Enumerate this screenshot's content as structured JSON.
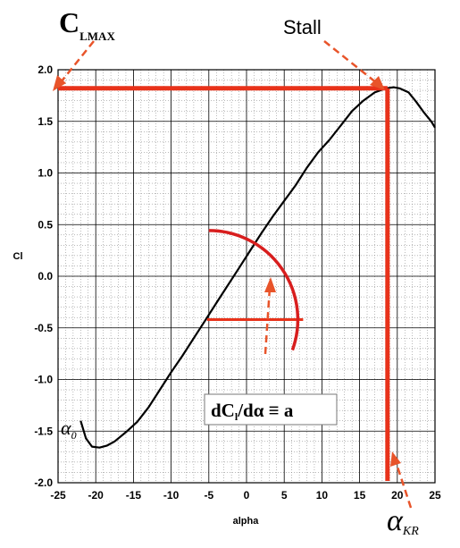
{
  "chart_data": {
    "type": "line",
    "xlabel": "alpha",
    "ylabel": "Cl",
    "xlim": [
      -25,
      25
    ],
    "ylim": [
      -2.0,
      2.0
    ],
    "x_ticks": [
      "-25",
      "-20",
      "-15",
      "-10",
      "-5",
      "0",
      "5",
      "10",
      "15",
      "20",
      "25"
    ],
    "y_ticks": [
      "2.0",
      "1.5",
      "1.0",
      "0.5",
      "0.0",
      "-0.5",
      "-1.0",
      "-1.5",
      "-2.0"
    ],
    "grid": true,
    "series": [
      {
        "x": [
          -22,
          -21.3,
          -20.5,
          -19.5,
          -18.5,
          -17.5,
          -16,
          -14.5,
          -13,
          -11.5,
          -10,
          -8.5,
          -7,
          -5.5,
          -4,
          -2.5,
          -1,
          0.5,
          2,
          3.5,
          5,
          6.5,
          8,
          9.5,
          11,
          12.5,
          14,
          15.5,
          17,
          18.5,
          19.5,
          20.3,
          21.5,
          22.5,
          23.5,
          24.5,
          25
        ],
        "y": [
          -1.4,
          -1.57,
          -1.65,
          -1.66,
          -1.64,
          -1.6,
          -1.51,
          -1.41,
          -1.27,
          -1.1,
          -0.93,
          -0.77,
          -0.6,
          -0.43,
          -0.26,
          -0.09,
          0.08,
          0.25,
          0.42,
          0.58,
          0.73,
          0.88,
          1.05,
          1.2,
          1.32,
          1.46,
          1.6,
          1.7,
          1.78,
          1.82,
          1.83,
          1.82,
          1.78,
          1.69,
          1.59,
          1.5,
          1.44
        ]
      }
    ],
    "annotations": {
      "clmax_label": "C",
      "clmax_sub": "LMAX",
      "stall_label": "Stall",
      "alpha0_label": "α",
      "alpha0_sub": "0",
      "alphakr_label": "α",
      "alphakr_sub": "KR",
      "slope_label": "dC",
      "slope_sub": "l",
      "slope_rest": "/dα ≡ a"
    },
    "markers": {
      "clmax_value": 1.82,
      "stall_alpha": 18.7,
      "slope_arc_center": [
        -5,
        -0.42
      ],
      "slope_arc_radius_alpha": 11.8
    },
    "colors": {
      "curve": "#000000",
      "annotation": "#e8321a",
      "arrow_dashed": "#e8542a",
      "grid_major": "#000000",
      "grid_minor": "#777777"
    }
  }
}
